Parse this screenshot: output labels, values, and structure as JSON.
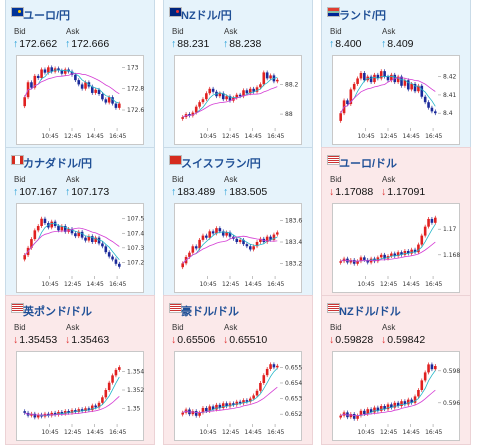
{
  "colors": {
    "up_bg": "#e6f3fb",
    "down_bg": "#fbe9ea",
    "title": "#1f4f96",
    "up_arrow": "#1a9ad6",
    "down_arrow": "#e03030",
    "candle_up": "#e02020",
    "candle_down": "#1a2a9a",
    "ma_short": "#22b6c8",
    "ma_long": "#d43cd4"
  },
  "cards": [
    {
      "title": "ユーロ/円",
      "flag": "eu-flag-icon",
      "bid_label": "Bid",
      "ask_label": "Ask",
      "bid": "172.662",
      "ask": "172.666",
      "direction": "up",
      "chart_data": {
        "type": "candlestick",
        "x_ticks": [
          "10:45",
          "12:45",
          "14:45",
          "16:45"
        ],
        "y_ticks": [
          "173",
          "172.8",
          "172.6"
        ],
        "ylim": [
          172.45,
          173.05
        ],
        "closes": [
          172.72,
          172.86,
          172.81,
          172.92,
          172.9,
          172.98,
          172.95,
          173.0,
          172.96,
          172.99,
          172.97,
          172.94,
          172.98,
          172.96,
          172.93,
          172.88,
          172.84,
          172.8,
          172.86,
          172.82,
          172.76,
          172.79,
          172.75,
          172.7,
          172.67,
          172.72,
          172.66,
          172.62,
          172.66
        ]
      }
    },
    {
      "title": "NZドル/円",
      "flag": "nz-flag-icon",
      "bid_label": "Bid",
      "ask_label": "Ask",
      "bid": "88.231",
      "ask": "88.238",
      "direction": "up",
      "chart_data": {
        "type": "candlestick",
        "x_ticks": [
          "10:45",
          "12:45",
          "14:45",
          "16:45"
        ],
        "y_ticks": [
          "88.2",
          "88"
        ],
        "ylim": [
          87.92,
          88.35
        ],
        "closes": [
          87.98,
          88.0,
          87.99,
          88.01,
          88.05,
          88.08,
          88.1,
          88.14,
          88.17,
          88.15,
          88.12,
          88.14,
          88.1,
          88.12,
          88.09,
          88.11,
          88.13,
          88.12,
          88.16,
          88.14,
          88.17,
          88.15,
          88.18,
          88.2,
          88.28,
          88.24,
          88.26,
          88.22,
          88.23
        ]
      }
    },
    {
      "title": "ランド/円",
      "flag": "za-flag-icon",
      "bid_label": "Bid",
      "ask_label": "Ask",
      "bid": "8.400",
      "ask": "8.409",
      "direction": "up",
      "chart_data": {
        "type": "candlestick",
        "x_ticks": [
          "10:45",
          "12:45",
          "14:45",
          "16:45"
        ],
        "y_ticks": [
          "8.42",
          "8.41",
          "8.4"
        ],
        "ylim": [
          8.393,
          8.428
        ],
        "closes": [
          8.4,
          8.407,
          8.405,
          8.413,
          8.416,
          8.419,
          8.422,
          8.418,
          8.42,
          8.417,
          8.421,
          8.419,
          8.423,
          8.42,
          8.418,
          8.421,
          8.417,
          8.42,
          8.415,
          8.418,
          8.413,
          8.416,
          8.412,
          8.415,
          8.409,
          8.406,
          8.403,
          8.401,
          8.4
        ]
      }
    },
    {
      "title": "カナダドル/円",
      "flag": "ca-flag-icon",
      "bid_label": "Bid",
      "ask_label": "Ask",
      "bid": "107.167",
      "ask": "107.173",
      "direction": "up",
      "chart_data": {
        "type": "candlestick",
        "x_ticks": [
          "10:45",
          "12:45",
          "14:45",
          "16:45"
        ],
        "y_ticks": [
          "107.5",
          "107.4",
          "107.3",
          "107.2"
        ],
        "ylim": [
          107.12,
          107.56
        ],
        "closes": [
          107.25,
          107.3,
          107.36,
          107.42,
          107.45,
          107.5,
          107.47,
          107.44,
          107.48,
          107.45,
          107.42,
          107.45,
          107.41,
          107.43,
          107.4,
          107.38,
          107.41,
          107.37,
          107.35,
          107.38,
          107.34,
          107.37,
          107.33,
          107.31,
          107.27,
          107.24,
          107.22,
          107.19,
          107.17
        ]
      }
    },
    {
      "title": "スイスフラン/円",
      "flag": "ch-flag-icon",
      "bid_label": "Bid",
      "ask_label": "Ask",
      "bid": "183.489",
      "ask": "183.505",
      "direction": "up",
      "chart_data": {
        "type": "candlestick",
        "x_ticks": [
          "10:45",
          "12:45",
          "14:45",
          "16:45"
        ],
        "y_ticks": [
          "183.6",
          "183.4",
          "183.2"
        ],
        "ylim": [
          183.1,
          183.7
        ],
        "closes": [
          183.2,
          183.26,
          183.3,
          183.36,
          183.34,
          183.42,
          183.46,
          183.44,
          183.5,
          183.48,
          183.53,
          183.5,
          183.46,
          183.49,
          183.45,
          183.43,
          183.4,
          183.42,
          183.38,
          183.36,
          183.33,
          183.36,
          183.4,
          183.43,
          183.4,
          183.45,
          183.42,
          183.47,
          183.49
        ]
      }
    },
    {
      "title": "ユーロ/ドル",
      "flag": "us-flag-icon",
      "bid_label": "Bid",
      "ask_label": "Ask",
      "bid": "1.17088",
      "ask": "1.17091",
      "direction": "down",
      "chart_data": {
        "type": "candlestick",
        "x_ticks": [
          "10:45",
          "12:45",
          "14:45",
          "16:45"
        ],
        "y_ticks": [
          "1.17",
          "1.168"
        ],
        "ylim": [
          1.1665,
          1.1715
        ],
        "closes": [
          1.1675,
          1.1677,
          1.1674,
          1.1676,
          1.1673,
          1.1675,
          1.1678,
          1.1676,
          1.1674,
          1.1677,
          1.1675,
          1.1678,
          1.168,
          1.1677,
          1.1679,
          1.1681,
          1.1679,
          1.1682,
          1.168,
          1.1683,
          1.1681,
          1.1684,
          1.1682,
          1.1688,
          1.1695,
          1.1702,
          1.1708,
          1.1705,
          1.1709
        ]
      }
    },
    {
      "title": "英ポンド/ドル",
      "flag": "us-flag-icon",
      "bid_label": "Bid",
      "ask_label": "Ask",
      "bid": "1.35453",
      "ask": "1.35463",
      "direction": "down",
      "chart_data": {
        "type": "candlestick",
        "x_ticks": [
          "10:45",
          "12:45",
          "14:45",
          "16:45"
        ],
        "y_ticks": [
          "1.354",
          "1.352",
          "1.35"
        ],
        "ylim": [
          1.3485,
          1.3555
        ],
        "closes": [
          1.3495,
          1.3492,
          1.3494,
          1.349,
          1.3493,
          1.3491,
          1.3494,
          1.3492,
          1.3495,
          1.3493,
          1.3496,
          1.3494,
          1.3497,
          1.3495,
          1.3498,
          1.3496,
          1.3499,
          1.3497,
          1.35,
          1.3498,
          1.3503,
          1.3501,
          1.3506,
          1.3512,
          1.352,
          1.3528,
          1.3536,
          1.3542,
          1.3545
        ]
      }
    },
    {
      "title": "豪ドル/ドル",
      "flag": "us-flag-icon",
      "bid_label": "Bid",
      "ask_label": "Ask",
      "bid": "0.65506",
      "ask": "0.65510",
      "direction": "down",
      "chart_data": {
        "type": "candlestick",
        "x_ticks": [
          "10:45",
          "12:45",
          "14:45",
          "16:45"
        ],
        "y_ticks": [
          "0.655",
          "0.654",
          "0.653",
          "0.652"
        ],
        "ylim": [
          0.6515,
          0.6556
        ],
        "closes": [
          0.6521,
          0.6523,
          0.652,
          0.6522,
          0.6519,
          0.6521,
          0.6524,
          0.6522,
          0.6525,
          0.6523,
          0.6526,
          0.6524,
          0.6527,
          0.6525,
          0.6527,
          0.6526,
          0.6528,
          0.6527,
          0.6529,
          0.6528,
          0.653,
          0.6532,
          0.6535,
          0.654,
          0.6545,
          0.6549,
          0.6552,
          0.655,
          0.6551
        ]
      }
    },
    {
      "title": "NZドル/ドル",
      "flag": "us-flag-icon",
      "bid_label": "Bid",
      "ask_label": "Ask",
      "bid": "0.59828",
      "ask": "0.59842",
      "direction": "down",
      "chart_data": {
        "type": "candlestick",
        "x_ticks": [
          "10:45",
          "12:45",
          "14:45",
          "16:45"
        ],
        "y_ticks": [
          "0.598",
          "0.596"
        ],
        "ylim": [
          0.5948,
          0.5988
        ],
        "closes": [
          0.5952,
          0.5954,
          0.5951,
          0.5953,
          0.595,
          0.5952,
          0.5955,
          0.5953,
          0.5956,
          0.5954,
          0.5957,
          0.5955,
          0.5958,
          0.5956,
          0.5959,
          0.5957,
          0.596,
          0.5958,
          0.5961,
          0.5959,
          0.5962,
          0.596,
          0.5964,
          0.5968,
          0.5974,
          0.5979,
          0.5984,
          0.5981,
          0.5983
        ]
      }
    }
  ]
}
